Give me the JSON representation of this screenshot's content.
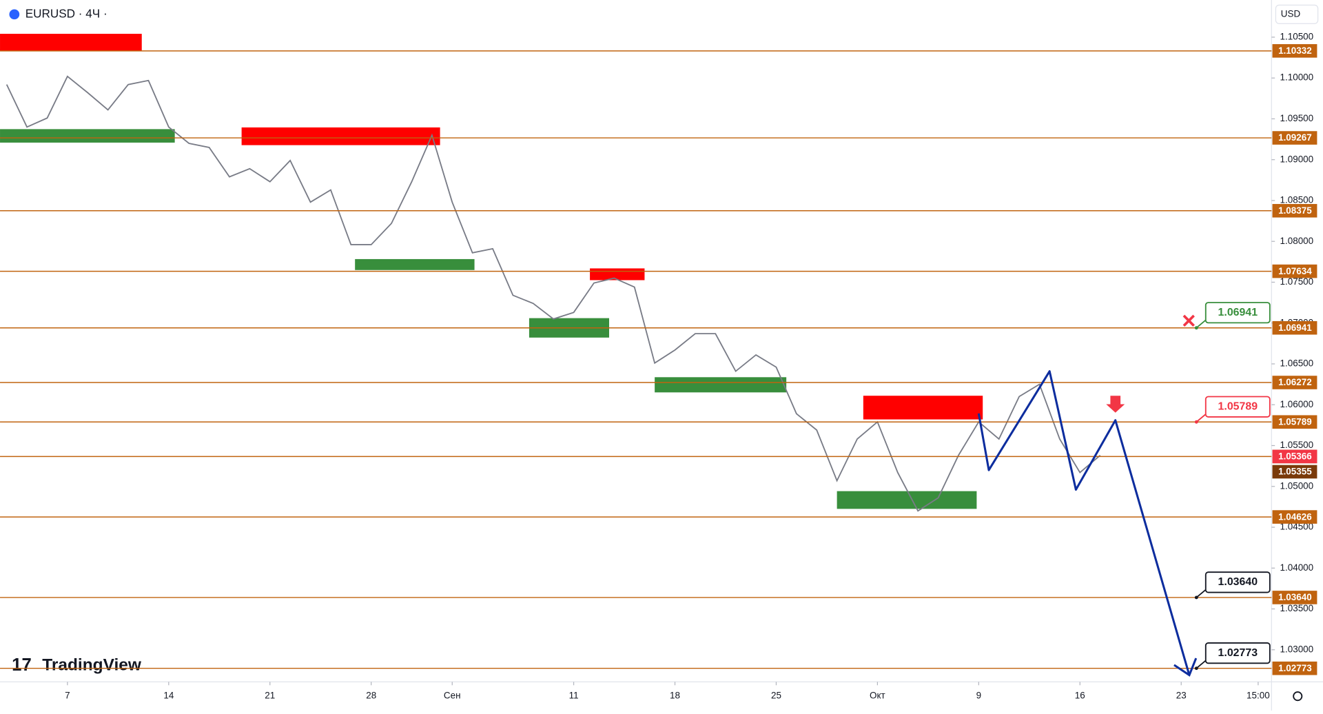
{
  "header": {
    "symbol": "EURUSD · 4Ч ·",
    "currency": "USD",
    "brand": "TradingView"
  },
  "chart_data": {
    "type": "line",
    "color": "#787b86",
    "x": [
      -3,
      -2,
      -1,
      0,
      1,
      2,
      3,
      4,
      5,
      6,
      7,
      8,
      9,
      10,
      11,
      12,
      13,
      14,
      15,
      16,
      17,
      18,
      19,
      20,
      21,
      22,
      23,
      24,
      25,
      26,
      27,
      28,
      29,
      30,
      31,
      32,
      33,
      34,
      35,
      36,
      37,
      38,
      39,
      40,
      41,
      42,
      43,
      44,
      45,
      46,
      47,
      48,
      49,
      50,
      51
    ],
    "values": [
      1.0992,
      1.094,
      1.0951,
      1.1002,
      1.0982,
      1.0961,
      1.0992,
      1.0997,
      1.094,
      1.092,
      1.0915,
      1.0879,
      1.0889,
      1.0873,
      1.0899,
      1.0848,
      1.0863,
      1.0796,
      1.0796,
      1.0822,
      1.0873,
      1.093,
      1.0848,
      1.0786,
      1.0791,
      1.0734,
      1.0724,
      1.0705,
      1.0713,
      1.0749,
      1.0755,
      1.0744,
      1.0651,
      1.0667,
      1.0687,
      1.0687,
      1.0641,
      1.0661,
      1.0646,
      1.0589,
      1.0569,
      1.0507,
      1.0558,
      1.0579,
      1.0517,
      1.047,
      1.0486,
      1.0538,
      1.0579,
      1.0558,
      1.061,
      1.0625,
      1.0558,
      1.0517,
      1.0538
    ],
    "xlim": [
      -3.33,
      59.46
    ],
    "ylim": [
      1.02607,
      1.10955
    ],
    "xticks": [
      {
        "value": 0,
        "label": "7"
      },
      {
        "value": 5,
        "label": "14"
      },
      {
        "value": 10,
        "label": "21"
      },
      {
        "value": 15,
        "label": "28"
      },
      {
        "value": 19,
        "label": "Сен"
      },
      {
        "value": 25,
        "label": "11"
      },
      {
        "value": 30,
        "label": "18"
      },
      {
        "value": 35,
        "label": "25"
      },
      {
        "value": 40,
        "label": "Окт"
      },
      {
        "value": 45,
        "label": "9"
      },
      {
        "value": 50,
        "label": "16"
      },
      {
        "value": 55,
        "label": "23"
      },
      {
        "value": 58.8,
        "label": "15:00"
      }
    ],
    "yticks": [
      {
        "value": 1.105,
        "label": "1.10500"
      },
      {
        "value": 1.1,
        "label": "1.10000"
      },
      {
        "value": 1.095,
        "label": "1.09500"
      },
      {
        "value": 1.09,
        "label": "1.09000"
      },
      {
        "value": 1.085,
        "label": "1.08500"
      },
      {
        "value": 1.08,
        "label": "1.08000"
      },
      {
        "value": 1.075,
        "label": "1.07500"
      },
      {
        "value": 1.07,
        "label": "1.07000"
      },
      {
        "value": 1.065,
        "label": "1.06500"
      },
      {
        "value": 1.06,
        "label": "1.06000"
      },
      {
        "value": 1.055,
        "label": "1.05500"
      },
      {
        "value": 1.05,
        "label": "1.05000"
      },
      {
        "value": 1.045,
        "label": "1.04500"
      },
      {
        "value": 1.04,
        "label": "1.04000"
      },
      {
        "value": 1.035,
        "label": "1.03500"
      },
      {
        "value": 1.03,
        "label": "1.03000"
      }
    ],
    "levels": [
      1.10332,
      1.09267,
      1.08375,
      1.07634,
      1.06941,
      1.06272,
      1.05789,
      1.05366,
      1.04626,
      {
        "value": 1.0364,
        "label": "1.03640"
      },
      1.02773
    ],
    "level_color": "#c0630f",
    "price_tags": [
      {
        "value": 1.05366,
        "color": "#f23645"
      },
      {
        "value": 1.05355,
        "color": "#7a3a0a"
      }
    ],
    "zones": [
      {
        "color": "#ff0000",
        "x": [
          -3.33,
          3.67
        ],
        "prices": [
          1.10541,
          1.10335
        ]
      },
      {
        "color": "#ff0000",
        "x": [
          8.6,
          18.4
        ],
        "prices": [
          1.09395,
          1.09178
        ]
      },
      {
        "color": "#ff0000",
        "x": [
          25.8,
          28.5
        ],
        "prices": [
          1.07669,
          1.07525
        ]
      },
      {
        "color": "#ff0000",
        "x": [
          39.3,
          45.2
        ],
        "prices": [
          1.0611,
          1.0582
        ]
      },
      {
        "color": "#388e3c",
        "x": [
          -3.33,
          5.3
        ],
        "prices": [
          1.09374,
          1.09209
        ]
      },
      {
        "color": "#388e3c",
        "x": [
          14.2,
          20.1
        ],
        "prices": [
          1.07783,
          1.07649
        ]
      },
      {
        "color": "#388e3c",
        "x": [
          22.8,
          26.75
        ],
        "prices": [
          1.0706,
          1.06822
        ]
      },
      {
        "color": "#388e3c",
        "x": [
          29.0,
          35.5
        ],
        "prices": [
          1.06337,
          1.06151
        ]
      },
      {
        "color": "#388e3c",
        "x": [
          38.0,
          44.9
        ],
        "prices": [
          1.04942,
          1.04725
        ]
      }
    ],
    "projection": {
      "color": "#0d2d9e",
      "x": [
        45,
        45.5,
        48.5,
        49.8,
        51.75,
        55.4
      ],
      "values": [
        1.05893,
        1.052,
        1.0641,
        1.0496,
        1.0581,
        1.0269
      ]
    },
    "callouts": [
      {
        "value": 1.06941,
        "color": "#388e3c"
      },
      {
        "value": 1.05789,
        "color": "#f23645"
      },
      {
        "value": {
          "value": 1.0364,
          "label": "1.03640"
        },
        "color": "#131722"
      },
      {
        "value": 1.02773,
        "color": "#131722"
      }
    ]
  }
}
